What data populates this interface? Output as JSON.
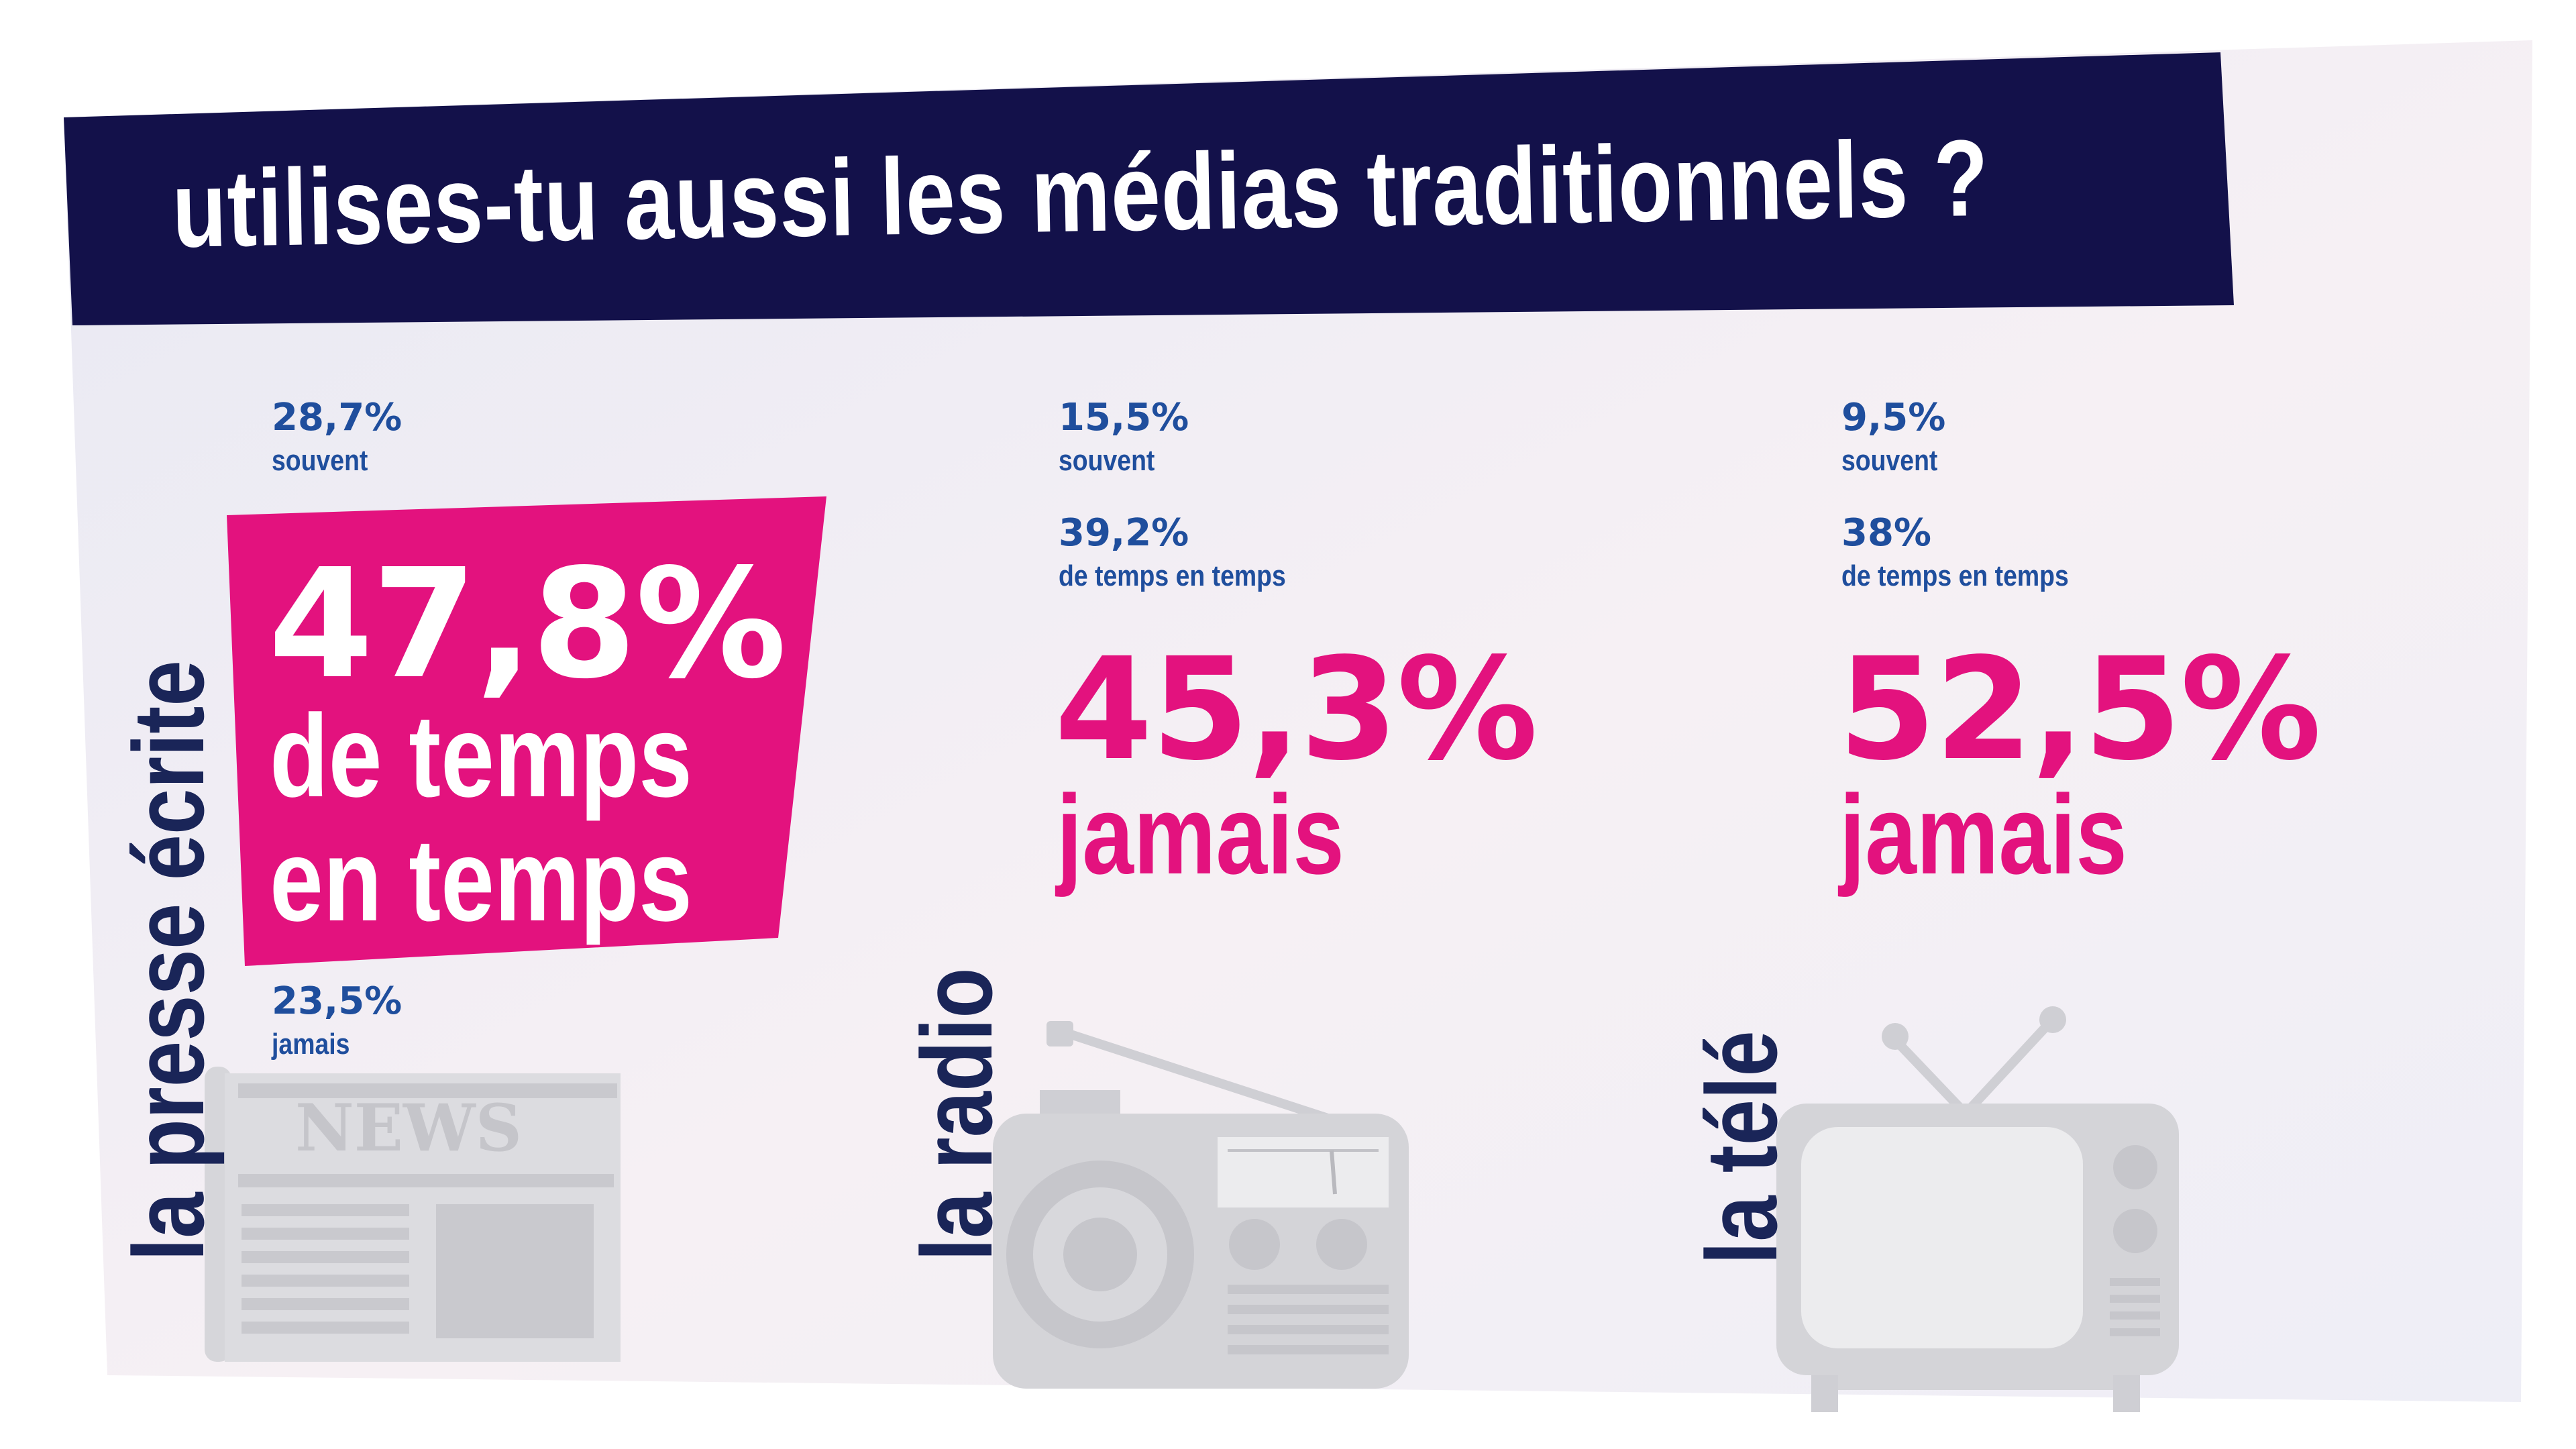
{
  "title": "utilises-tu aussi les médias traditionnels ?",
  "colors": {
    "navy": "#13114a",
    "pink": "#e3127e",
    "blue": "#1f4e9d",
    "icon_grey": "#cfcfd2"
  },
  "icons": [
    "newspaper-icon",
    "radio-icon",
    "tv-icon"
  ],
  "chart_data": {
    "type": "table",
    "columns": [
      "souvent",
      "de temps en temps",
      "jamais"
    ],
    "rows": [
      {
        "name": "la presse écrite",
        "values": [
          28.7,
          47.8,
          23.5
        ],
        "highlight": "de temps en temps"
      },
      {
        "name": "la radio",
        "values": [
          15.5,
          39.2,
          45.3
        ],
        "highlight": "jamais"
      },
      {
        "name": "la télé",
        "values": [
          9.5,
          38,
          52.5
        ],
        "highlight": "jamais"
      }
    ]
  },
  "display": {
    "presse": {
      "name": "la presse écrite",
      "souvent_value": "28,7%",
      "souvent_label": "souvent",
      "highlight_value": "47,8%",
      "highlight_label_1": "de temps",
      "highlight_label_2": "en temps",
      "jamais_value": "23,5%",
      "jamais_label": "jamais",
      "news_text": "NEWS"
    },
    "radio": {
      "name": "la radio",
      "souvent_value": "15,5%",
      "souvent_label": "souvent",
      "temps_value": "39,2%",
      "temps_label": "de temps en temps",
      "highlight_value": "45,3%",
      "highlight_label": "jamais"
    },
    "tele": {
      "name": "la télé",
      "souvent_value": "9,5%",
      "souvent_label": "souvent",
      "temps_value": "38%",
      "temps_label": "de temps en temps",
      "highlight_value": "52,5%",
      "highlight_label": "jamais"
    }
  }
}
